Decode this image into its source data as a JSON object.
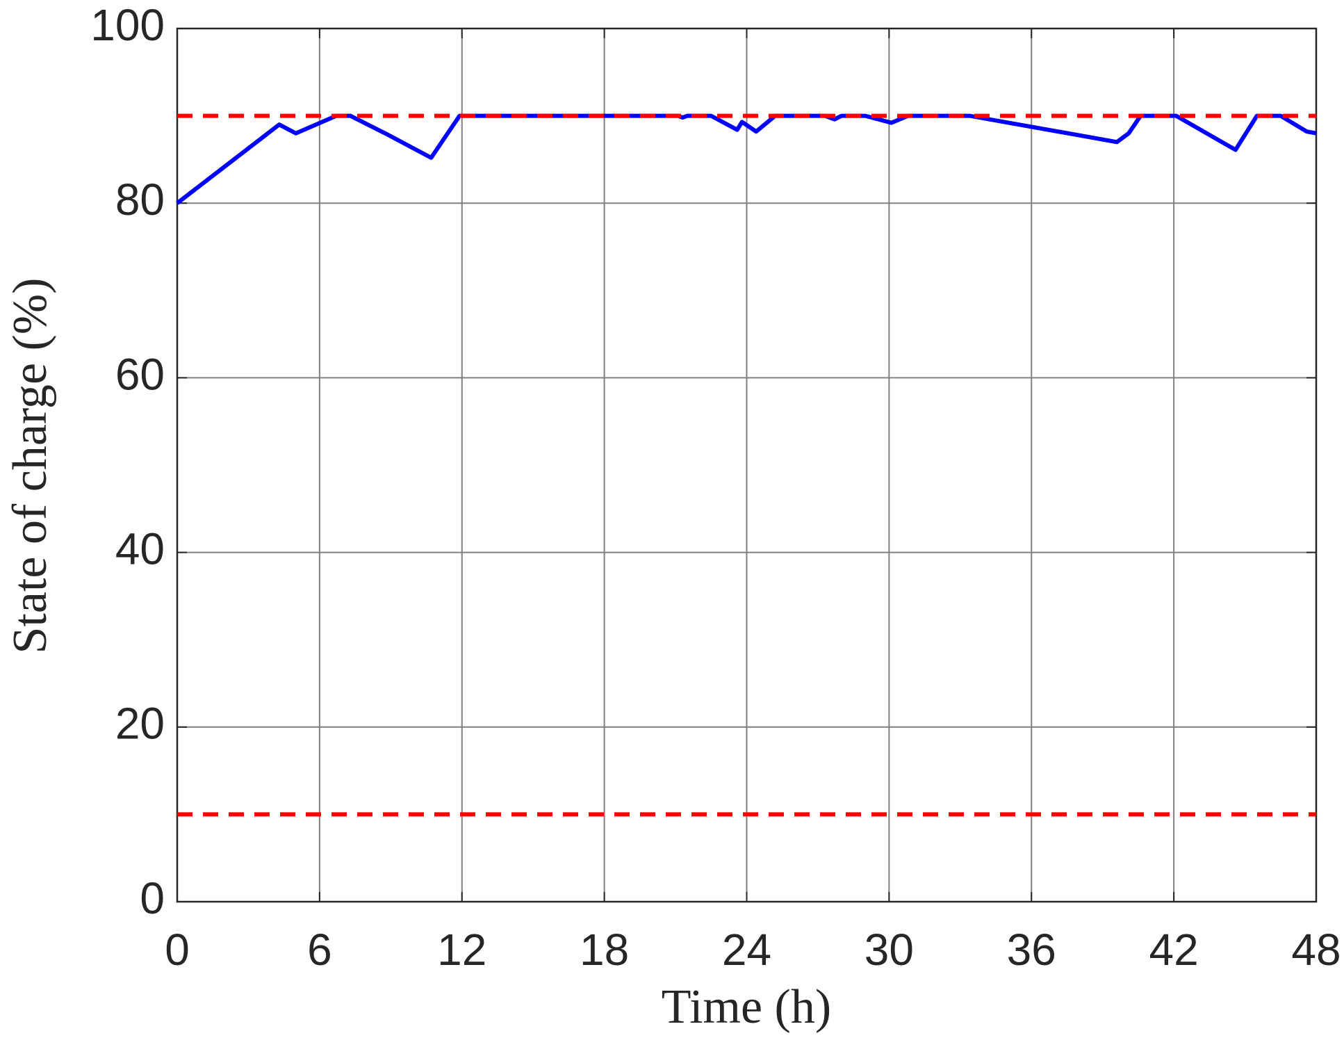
{
  "chart_data": {
    "type": "line",
    "xlabel": "Time (h)",
    "ylabel": "State of charge (%)",
    "xlim": [
      0,
      48
    ],
    "xticks": [
      0,
      6,
      12,
      18,
      24,
      30,
      36,
      42,
      48
    ],
    "ylim": [
      0,
      100
    ],
    "yticks": [
      0,
      20,
      40,
      60,
      80,
      100
    ],
    "grid": true,
    "series": [
      {
        "color": "#0000ff",
        "dashed": false,
        "x": [
          0,
          4.3,
          5,
          6.7,
          7.3,
          8.9,
          10.7,
          11.9,
          21.1,
          21.3,
          21.5,
          22.5,
          23.6,
          23.8,
          24.4,
          25.2,
          27.3,
          27.7,
          28,
          29,
          30.1,
          30.8,
          33.4,
          39.6,
          40.1,
          40.6,
          42.1,
          44.6,
          45.5,
          46.5,
          47.6,
          48
        ],
        "values": [
          80,
          89,
          88,
          90,
          90,
          87.8,
          85.2,
          90,
          90,
          89.8,
          90,
          90,
          88.4,
          89.3,
          88.2,
          90,
          90,
          89.6,
          90,
          90,
          89.2,
          90,
          90,
          87,
          88,
          90,
          90,
          86.1,
          90,
          90,
          88.2,
          88
        ]
      },
      {
        "color": "#ff0000",
        "dashed": true,
        "x": [
          0,
          48
        ],
        "values": [
          90,
          90
        ]
      },
      {
        "color": "#ff0000",
        "dashed": true,
        "x": [
          0,
          48
        ],
        "values": [
          10,
          10
        ]
      }
    ]
  }
}
